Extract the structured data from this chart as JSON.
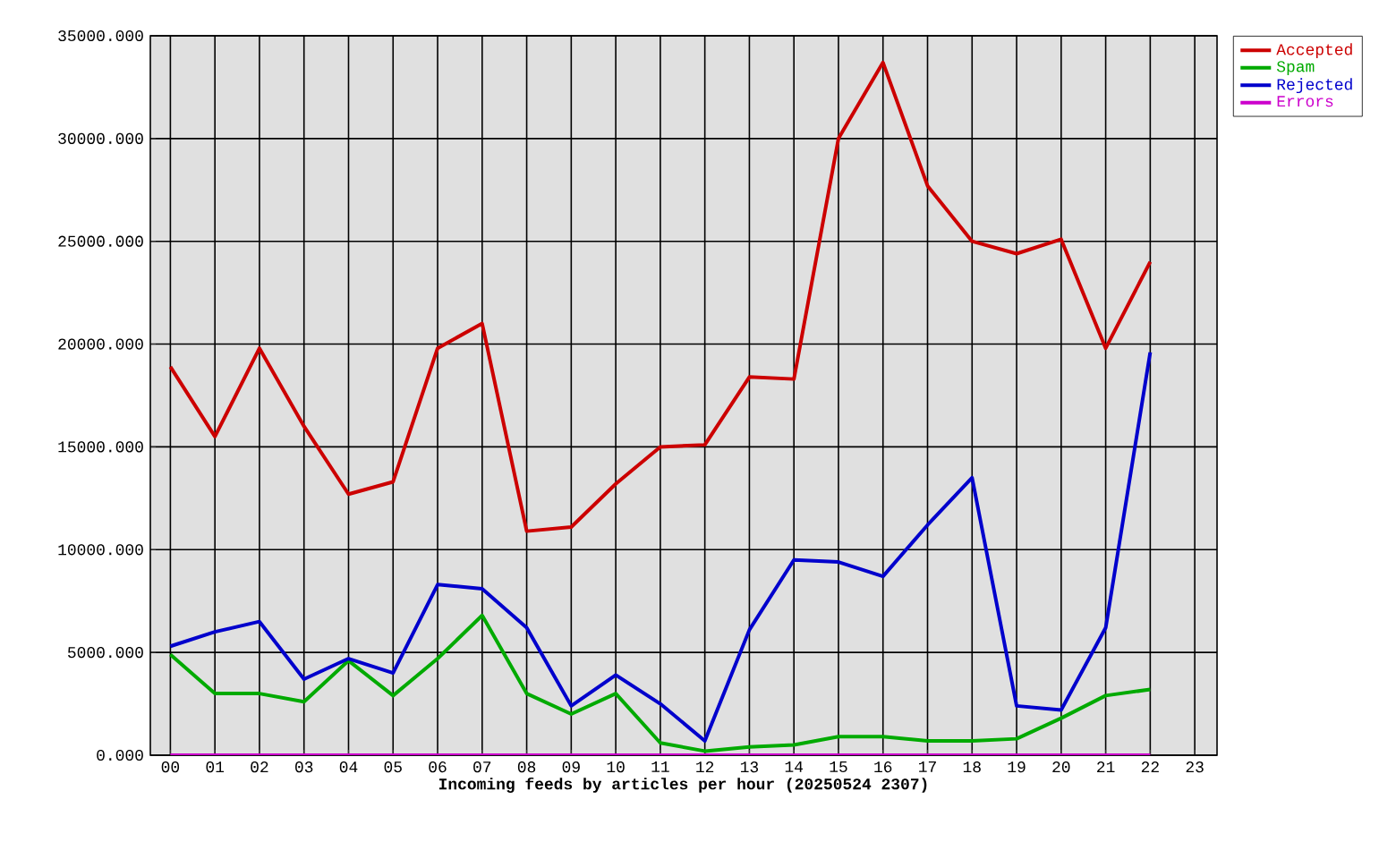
{
  "chart_data": {
    "type": "line",
    "xlabel": "Incoming feeds by articles per hour (20250524 2307)",
    "categories": [
      "00",
      "01",
      "02",
      "03",
      "04",
      "05",
      "06",
      "07",
      "08",
      "09",
      "10",
      "11",
      "12",
      "13",
      "14",
      "15",
      "16",
      "17",
      "18",
      "19",
      "20",
      "21",
      "22",
      "23"
    ],
    "series": [
      {
        "name": "Accepted",
        "color": "#cc0000",
        "values": [
          18900,
          15500,
          19800,
          16000,
          12700,
          13300,
          19800,
          21000,
          10900,
          11100,
          13200,
          15000,
          15100,
          18400,
          18300,
          30000,
          33700,
          27700,
          25000,
          24400,
          25100,
          19800,
          24000,
          null
        ]
      },
      {
        "name": "Spam",
        "color": "#00aa00",
        "values": [
          4900,
          3000,
          3000,
          2600,
          4600,
          2900,
          4700,
          6800,
          3000,
          2000,
          3000,
          600,
          200,
          400,
          500,
          900,
          900,
          700,
          700,
          800,
          1800,
          2900,
          3200,
          null
        ]
      },
      {
        "name": "Rejected",
        "color": "#0000cc",
        "values": [
          5300,
          6000,
          6500,
          3700,
          4700,
          4000,
          8300,
          8100,
          6200,
          2400,
          3900,
          2500,
          700,
          6100,
          9500,
          9400,
          8700,
          11200,
          13500,
          2400,
          2200,
          6200,
          19600,
          null
        ]
      },
      {
        "name": "Errors",
        "color": "#cc00cc",
        "values": [
          0,
          0,
          0,
          0,
          0,
          0,
          0,
          0,
          0,
          0,
          0,
          0,
          0,
          0,
          0,
          0,
          0,
          0,
          0,
          0,
          0,
          0,
          0,
          null
        ]
      }
    ],
    "ylim": [
      0,
      35000
    ],
    "yticks": [
      {
        "value": 0,
        "label": "0.000"
      },
      {
        "value": 5000,
        "label": "5000.000"
      },
      {
        "value": 10000,
        "label": "10000.000"
      },
      {
        "value": 15000,
        "label": "15000.000"
      },
      {
        "value": 20000,
        "label": "20000.000"
      },
      {
        "value": 25000,
        "label": "25000.000"
      },
      {
        "value": 30000,
        "label": "30000.000"
      },
      {
        "value": 35000,
        "label": "35000.000"
      }
    ],
    "grid": true,
    "legend": "top right",
    "line_style": "solid"
  }
}
